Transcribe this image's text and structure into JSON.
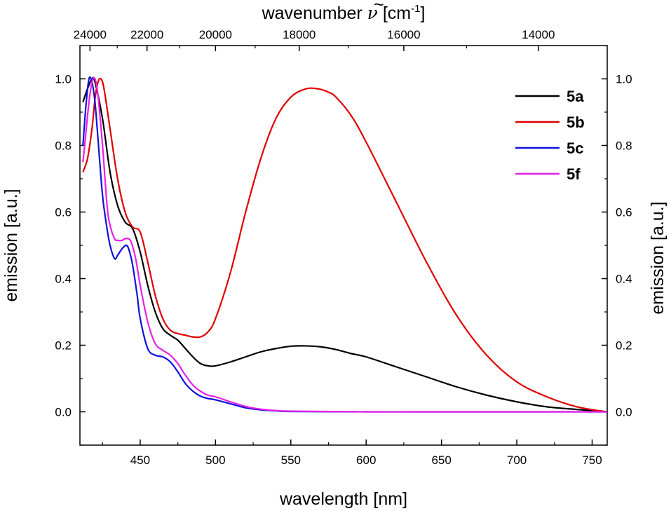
{
  "chart_data": {
    "type": "line",
    "title": "",
    "xlabel": "wavelength [nm]",
    "ylabel": "emission [a.u.]",
    "ylabel_right": "emission [a.u.]",
    "x2label": {
      "prefix": "wavenumber ",
      "symbol": "ν",
      "accent": "~",
      "unit_open": " [cm",
      "exponent": "-1",
      "unit_close": "]"
    },
    "xlim": [
      410,
      760
    ],
    "ylim": [
      -0.1,
      1.1
    ],
    "xticks": [
      450,
      500,
      550,
      600,
      650,
      700,
      750
    ],
    "yticks": [
      0.0,
      0.2,
      0.4,
      0.6,
      0.8,
      1.0
    ],
    "yticks_right": [
      0.0,
      0.2,
      0.4,
      0.6,
      0.8,
      1.0
    ],
    "x2ticks": [
      24000,
      22000,
      20000,
      18000,
      16000,
      14000
    ],
    "legend_position": "top-right",
    "colors": {
      "axis": "#000000"
    },
    "series": [
      {
        "name": "5a",
        "color": "#000000",
        "x": [
          412,
          415,
          418,
          420,
          425,
          430,
          435,
          440,
          445,
          450,
          455,
          460,
          465,
          470,
          475,
          480,
          485,
          490,
          495,
          500,
          510,
          520,
          530,
          540,
          550,
          560,
          570,
          580,
          590,
          600,
          620,
          640,
          660,
          680,
          700,
          720,
          740,
          760
        ],
        "values": [
          0.93,
          0.97,
          1.0,
          0.99,
          0.88,
          0.72,
          0.62,
          0.57,
          0.55,
          0.48,
          0.38,
          0.3,
          0.25,
          0.23,
          0.215,
          0.19,
          0.165,
          0.145,
          0.138,
          0.138,
          0.15,
          0.165,
          0.18,
          0.19,
          0.197,
          0.198,
          0.195,
          0.187,
          0.175,
          0.165,
          0.135,
          0.105,
          0.075,
          0.05,
          0.03,
          0.015,
          0.007,
          0.0
        ]
      },
      {
        "name": "5b",
        "color": "#e00000",
        "x": [
          412,
          415,
          418,
          420,
          422,
          424,
          426,
          430,
          435,
          440,
          445,
          450,
          455,
          460,
          465,
          470,
          475,
          480,
          485,
          490,
          495,
          500,
          510,
          520,
          530,
          540,
          550,
          560,
          568,
          575,
          580,
          590,
          600,
          620,
          640,
          660,
          680,
          700,
          720,
          740,
          760
        ],
        "values": [
          0.72,
          0.76,
          0.85,
          0.94,
          0.99,
          1.0,
          0.97,
          0.85,
          0.7,
          0.6,
          0.555,
          0.54,
          0.45,
          0.35,
          0.28,
          0.245,
          0.235,
          0.23,
          0.225,
          0.225,
          0.24,
          0.28,
          0.42,
          0.6,
          0.76,
          0.88,
          0.945,
          0.97,
          0.97,
          0.96,
          0.945,
          0.89,
          0.81,
          0.63,
          0.45,
          0.29,
          0.17,
          0.09,
          0.045,
          0.015,
          0.0
        ]
      },
      {
        "name": "5c",
        "color": "#1010e0",
        "x": [
          412,
          414,
          416,
          418,
          420,
          422,
          425,
          428,
          430,
          433,
          435,
          438,
          441,
          443,
          445,
          448,
          450,
          455,
          460,
          465,
          470,
          475,
          480,
          485,
          490,
          495,
          500,
          510,
          520,
          530,
          540,
          550,
          600,
          650,
          700,
          760
        ],
        "values": [
          0.8,
          0.92,
          1.0,
          0.99,
          0.93,
          0.82,
          0.65,
          0.55,
          0.5,
          0.46,
          0.47,
          0.49,
          0.5,
          0.48,
          0.44,
          0.35,
          0.28,
          0.19,
          0.17,
          0.165,
          0.15,
          0.12,
          0.085,
          0.062,
          0.047,
          0.04,
          0.036,
          0.024,
          0.012,
          0.006,
          0.003,
          0.001,
          0.0,
          0.0,
          0.0,
          0.0
        ]
      },
      {
        "name": "5f",
        "color": "#e820e8",
        "x": [
          412,
          414,
          416,
          418,
          420,
          422,
          425,
          428,
          430,
          433,
          435,
          438,
          440,
          442,
          444,
          447,
          450,
          455,
          460,
          465,
          470,
          475,
          480,
          485,
          490,
          495,
          500,
          510,
          520,
          530,
          540,
          550,
          600,
          650,
          700,
          760
        ],
        "values": [
          0.75,
          0.84,
          0.93,
          0.99,
          1.0,
          0.95,
          0.8,
          0.62,
          0.56,
          0.52,
          0.515,
          0.515,
          0.52,
          0.52,
          0.51,
          0.46,
          0.38,
          0.27,
          0.205,
          0.185,
          0.17,
          0.145,
          0.11,
          0.08,
          0.062,
          0.05,
          0.045,
          0.03,
          0.016,
          0.008,
          0.004,
          0.002,
          0.0,
          0.0,
          0.0,
          0.0
        ]
      }
    ]
  }
}
